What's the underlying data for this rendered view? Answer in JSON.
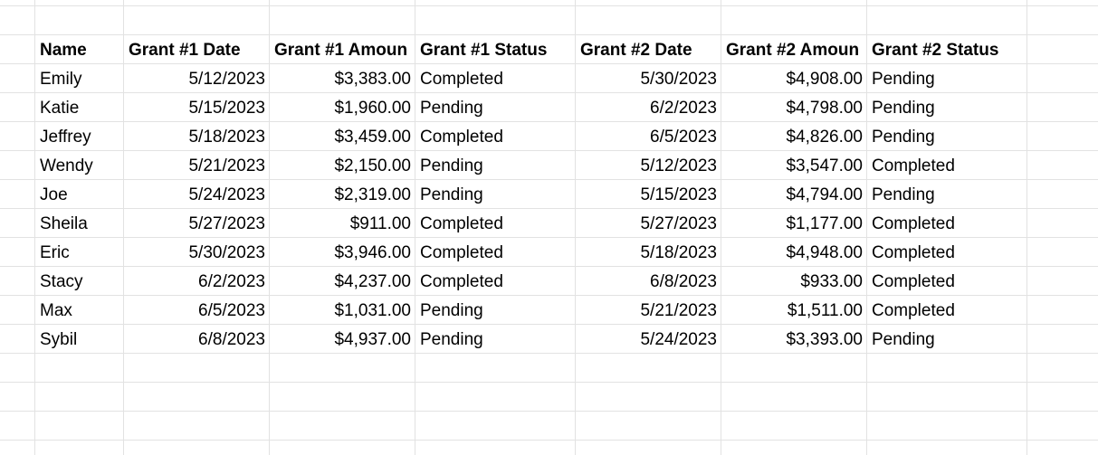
{
  "table": {
    "header": [
      "Name",
      "Grant #1 Date",
      "Grant #1 Amoun",
      "Grant #1 Status",
      "Grant #2 Date",
      "Grant #2 Amoun",
      "Grant #2 Status"
    ],
    "rows": [
      [
        "Emily",
        "5/12/2023",
        "$3,383.00",
        "Completed",
        "5/30/2023",
        "$4,908.00",
        "Pending"
      ],
      [
        "Katie",
        "5/15/2023",
        "$1,960.00",
        "Pending",
        "6/2/2023",
        "$4,798.00",
        "Pending"
      ],
      [
        "Jeffrey",
        "5/18/2023",
        "$3,459.00",
        "Completed",
        "6/5/2023",
        "$4,826.00",
        "Pending"
      ],
      [
        "Wendy",
        "5/21/2023",
        "$2,150.00",
        "Pending",
        "5/12/2023",
        "$3,547.00",
        "Completed"
      ],
      [
        "Joe",
        "5/24/2023",
        "$2,319.00",
        "Pending",
        "5/15/2023",
        "$4,794.00",
        "Pending"
      ],
      [
        "Sheila",
        "5/27/2023",
        "$911.00",
        "Completed",
        "5/27/2023",
        "$1,177.00",
        "Completed"
      ],
      [
        "Eric",
        "5/30/2023",
        "$3,946.00",
        "Completed",
        "5/18/2023",
        "$4,948.00",
        "Completed"
      ],
      [
        "Stacy",
        "6/2/2023",
        "$4,237.00",
        "Completed",
        "6/8/2023",
        "$933.00",
        "Completed"
      ],
      [
        "Max",
        "6/5/2023",
        "$1,031.00",
        "Pending",
        "5/21/2023",
        "$1,511.00",
        "Completed"
      ],
      [
        "Sybil",
        "6/8/2023",
        "$4,937.00",
        "Pending",
        "5/24/2023",
        "$3,393.00",
        "Pending"
      ]
    ]
  }
}
